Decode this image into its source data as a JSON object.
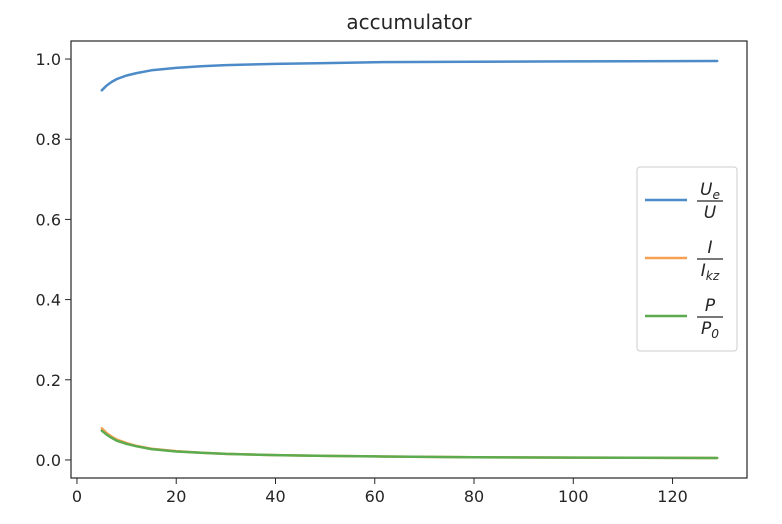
{
  "chart_data": {
    "type": "line",
    "title": "accumulator",
    "xlabel": "",
    "ylabel": "",
    "xlim": [
      -1.2,
      135
    ],
    "ylim": [
      -0.045,
      1.045
    ],
    "xticks": [
      0,
      20,
      40,
      60,
      80,
      100,
      120
    ],
    "yticks": [
      0.0,
      0.2,
      0.4,
      0.6,
      0.8,
      1.0
    ],
    "xtick_labels": [
      "0",
      "20",
      "40",
      "60",
      "80",
      "100",
      "120"
    ],
    "ytick_labels": [
      "0.0",
      "0.2",
      "0.4",
      "0.6",
      "0.8",
      "1.0"
    ],
    "grid": false,
    "legend_position": "center-right",
    "x": [
      5,
      6,
      7,
      8,
      10,
      12,
      15,
      20,
      25,
      30,
      40,
      50,
      60,
      80,
      100,
      129
    ],
    "series": [
      {
        "name": "Ue/U",
        "legend_num": "U",
        "legend_num_sub": "e",
        "legend_den": "U",
        "legend_den_sub": "",
        "color": "#4c8bc8",
        "values": [
          0.922,
          0.934,
          0.943,
          0.95,
          0.959,
          0.965,
          0.972,
          0.978,
          0.982,
          0.985,
          0.988,
          0.99,
          0.992,
          0.993,
          0.994,
          0.995
        ]
      },
      {
        "name": "I/Ikz",
        "legend_num": "I",
        "legend_num_sub": "",
        "legend_den": "I",
        "legend_den_sub": "kz",
        "color": "#f5a053",
        "values": [
          0.079,
          0.067,
          0.058,
          0.051,
          0.042,
          0.035,
          0.028,
          0.022,
          0.018,
          0.015,
          0.012,
          0.01,
          0.009,
          0.007,
          0.006,
          0.005
        ]
      },
      {
        "name": "P/P0",
        "legend_num": "P",
        "legend_num_sub": "",
        "legend_den": "P",
        "legend_den_sub": "0",
        "color": "#5cab4f",
        "values": [
          0.073,
          0.063,
          0.055,
          0.048,
          0.04,
          0.034,
          0.027,
          0.021,
          0.018,
          0.015,
          0.012,
          0.01,
          0.009,
          0.007,
          0.006,
          0.005
        ]
      }
    ]
  }
}
